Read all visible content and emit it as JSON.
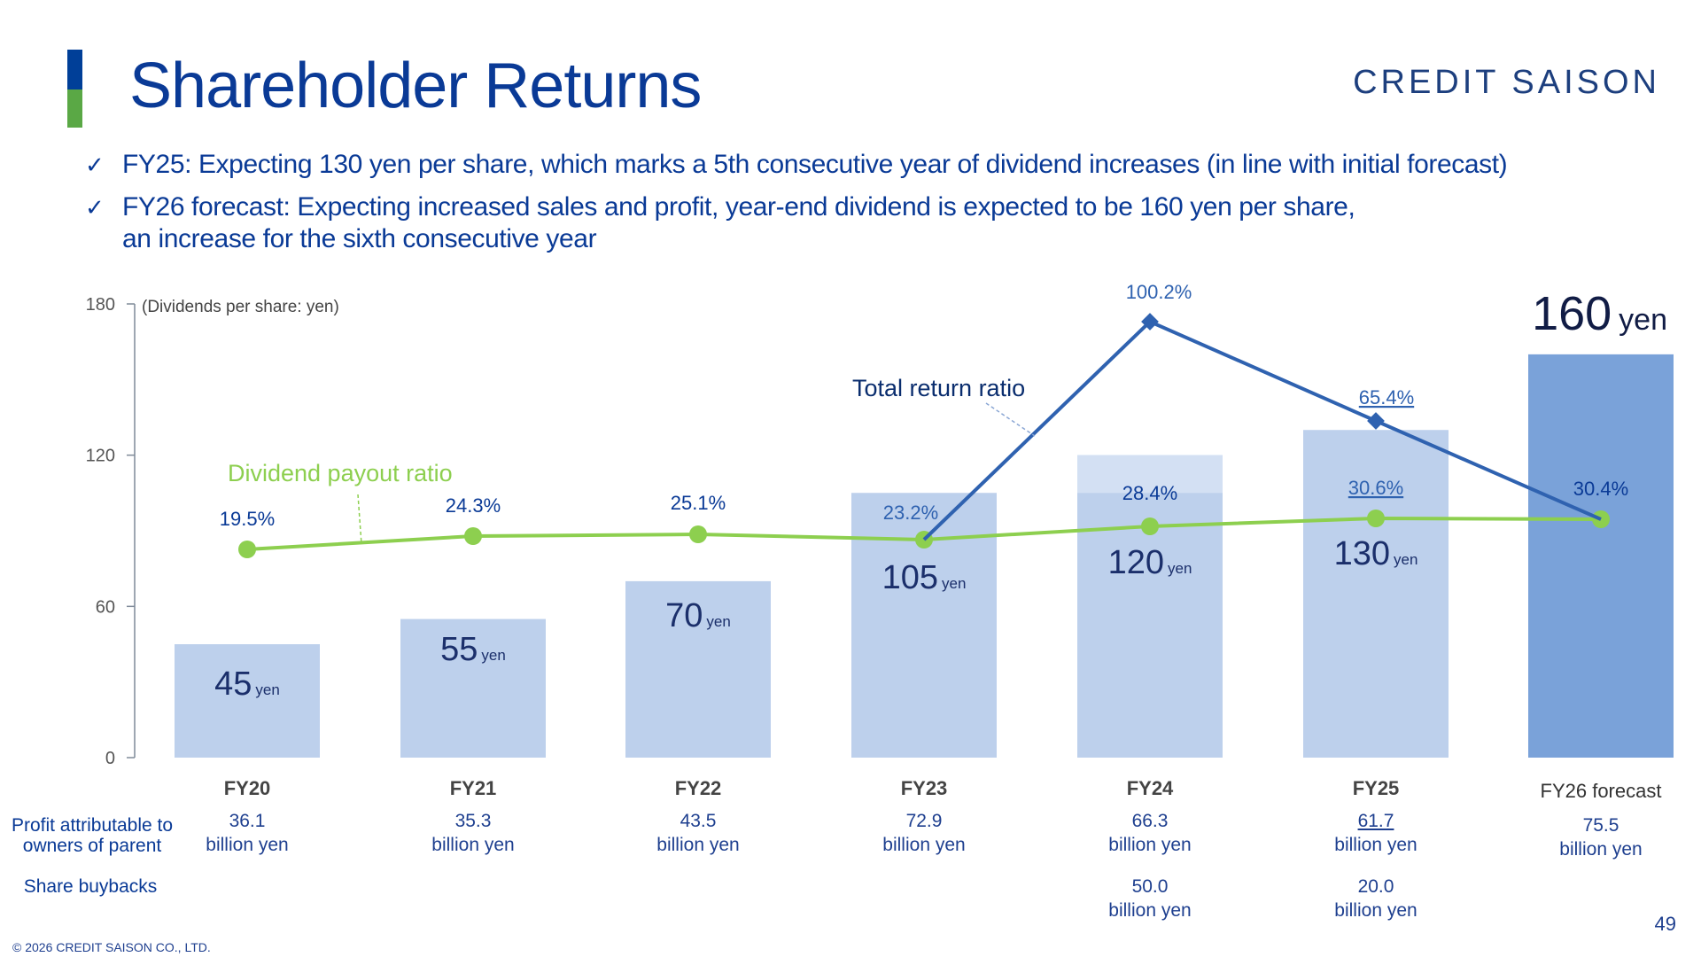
{
  "header": {
    "title": "Shareholder Returns",
    "logo": "CREDIT SAISON",
    "accent_colors": [
      "#003f98",
      "#5aa845"
    ]
  },
  "bullets": [
    {
      "icon": "check-icon",
      "text": "FY25: Expecting 130 yen per share, which marks a 5th consecutive year of dividend increases (in line with initial forecast)"
    },
    {
      "icon": "check-icon",
      "text": "FY26 forecast: Expecting increased sales and profit, year-end dividend is expected to be 160 yen per share,",
      "text2": "an increase for the sixth consecutive year"
    }
  ],
  "chart_data": {
    "type": "bar",
    "unit_label": "(Dividends per share: yen)",
    "ylim": [
      0,
      180
    ],
    "yticks": [
      0,
      60,
      120,
      180
    ],
    "categories": [
      "FY20",
      "FY21",
      "FY22",
      "FY23",
      "FY24",
      "FY25",
      "FY26 forecast"
    ],
    "series": [
      {
        "values": [
          45,
          55,
          70,
          105,
          120,
          130,
          160
        ],
        "color": "#bdd0ec",
        "highlight_color": "#7aa2d9",
        "unit": "yen"
      }
    ],
    "forecast_label": {
      "value": "160",
      "unit": "yen"
    },
    "lines": [
      {
        "name": "Dividend payout ratio",
        "color": "#8dcf4f",
        "labels": [
          "19.5%",
          "24.3%",
          "25.1%",
          "23.2%",
          "28.4%",
          "30.6%",
          "30.4%"
        ],
        "values": [
          19.5,
          24.3,
          25.1,
          23.2,
          28.4,
          30.6,
          30.4
        ]
      },
      {
        "name": "Total return ratio",
        "color": "#2f62b0",
        "start_index": 3,
        "labels": [
          "100.2%",
          "65.4%"
        ],
        "label_indices": [
          4,
          5
        ],
        "values": [
          23.2,
          100.2,
          65.4,
          30.4
        ]
      }
    ],
    "rows": [
      {
        "label": "Profit attributable to owners of parent",
        "values": [
          "36.1",
          "35.3",
          "43.5",
          "72.9",
          "66.3",
          "61.7",
          "75.5"
        ],
        "unit": "billion yen"
      },
      {
        "label": "Share buybacks",
        "values": [
          "",
          "",
          "",
          "",
          "50.0",
          "20.0",
          ""
        ],
        "unit": "billion yen"
      }
    ]
  },
  "footer": {
    "copyright": "© 2026 CREDIT SAISON CO., LTD.",
    "page_number": "49"
  }
}
